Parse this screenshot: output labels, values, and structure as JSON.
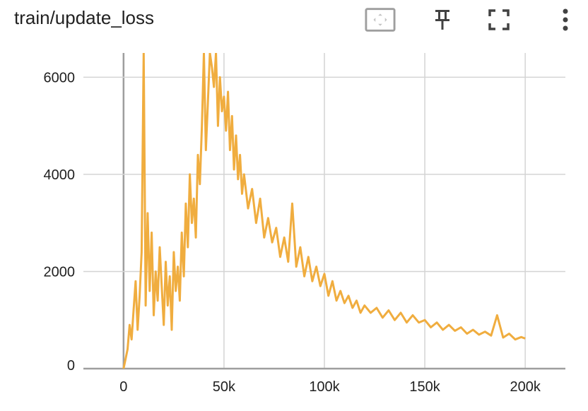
{
  "title": "train/update_loss",
  "toolbar": {
    "icons": [
      "fit-domain-icon",
      "pin-icon",
      "fullscreen-icon",
      "more-options-icon"
    ]
  },
  "colors": {
    "series": "#f0ad3f",
    "grid": "#d4d4d4",
    "axis": "#9e9e9e"
  },
  "chart_data": {
    "type": "line",
    "title": "train/update_loss",
    "xlabel": "",
    "ylabel": "",
    "xlim": [
      -20000,
      220000
    ],
    "ylim": [
      0,
      6500
    ],
    "x_ticks": [
      0,
      50000,
      100000,
      150000,
      200000
    ],
    "x_tick_labels": [
      "0",
      "50k",
      "100k",
      "150k",
      "200k"
    ],
    "y_ticks": [
      0,
      2000,
      4000,
      6000
    ],
    "y_tick_labels": [
      "0",
      "2000",
      "4000",
      "6000"
    ],
    "grid": true,
    "legend": "none",
    "series": [
      {
        "x": [
          0,
          1000,
          2000,
          3000,
          4000,
          5000,
          6000,
          7000,
          8000,
          9000,
          10000,
          11000,
          12000,
          13000,
          14000,
          15000,
          16000,
          17000,
          18000,
          19000,
          20000,
          21000,
          22000,
          23000,
          24000,
          25000,
          26000,
          27000,
          28000,
          29000,
          30000,
          31000,
          32000,
          33000,
          34000,
          35000,
          36000,
          37000,
          38000,
          39000,
          40000,
          41000,
          42000,
          43000,
          44000,
          45000,
          46000,
          47000,
          48000,
          49000,
          50000,
          51000,
          52000,
          53000,
          54000,
          55000,
          56000,
          57000,
          58000,
          59000,
          60000,
          62000,
          64000,
          66000,
          68000,
          70000,
          72000,
          74000,
          76000,
          78000,
          80000,
          82000,
          84000,
          86000,
          88000,
          90000,
          92000,
          94000,
          96000,
          98000,
          100000,
          102000,
          104000,
          106000,
          108000,
          110000,
          112000,
          114000,
          116000,
          118000,
          120000,
          123000,
          126000,
          129000,
          132000,
          135000,
          138000,
          141000,
          144000,
          147000,
          150000,
          153000,
          156000,
          159000,
          162000,
          165000,
          168000,
          171000,
          174000,
          177000,
          180000,
          183000,
          186000,
          189000,
          192000,
          195000,
          198000,
          200000
        ],
        "y": [
          0,
          200,
          400,
          900,
          600,
          1200,
          1800,
          800,
          1500,
          2400,
          6500,
          1300,
          3200,
          1600,
          2800,
          1100,
          2000,
          1400,
          2500,
          1700,
          900,
          2200,
          1300,
          1900,
          800,
          2400,
          1600,
          2100,
          1400,
          2800,
          1900,
          3400,
          2500,
          4000,
          3000,
          3500,
          2700,
          4400,
          3800,
          5000,
          6500,
          4500,
          5500,
          6500,
          6200,
          5800,
          6500,
          5000,
          6000,
          5300,
          5600,
          4900,
          5700,
          4500,
          5200,
          4100,
          4800,
          3900,
          4400,
          3600,
          4000,
          3300,
          3700,
          3000,
          3500,
          2700,
          3100,
          2600,
          2900,
          2300,
          2700,
          2200,
          3400,
          2100,
          2500,
          1900,
          2300,
          1800,
          2100,
          1700,
          1950,
          1500,
          1800,
          1400,
          1600,
          1350,
          1500,
          1250,
          1400,
          1150,
          1300,
          1150,
          1250,
          1050,
          1200,
          1000,
          1150,
          950,
          1100,
          950,
          1000,
          850,
          950,
          800,
          900,
          780,
          850,
          720,
          800,
          700,
          760,
          680,
          1100,
          640,
          720,
          600,
          650,
          620
        ]
      }
    ]
  }
}
